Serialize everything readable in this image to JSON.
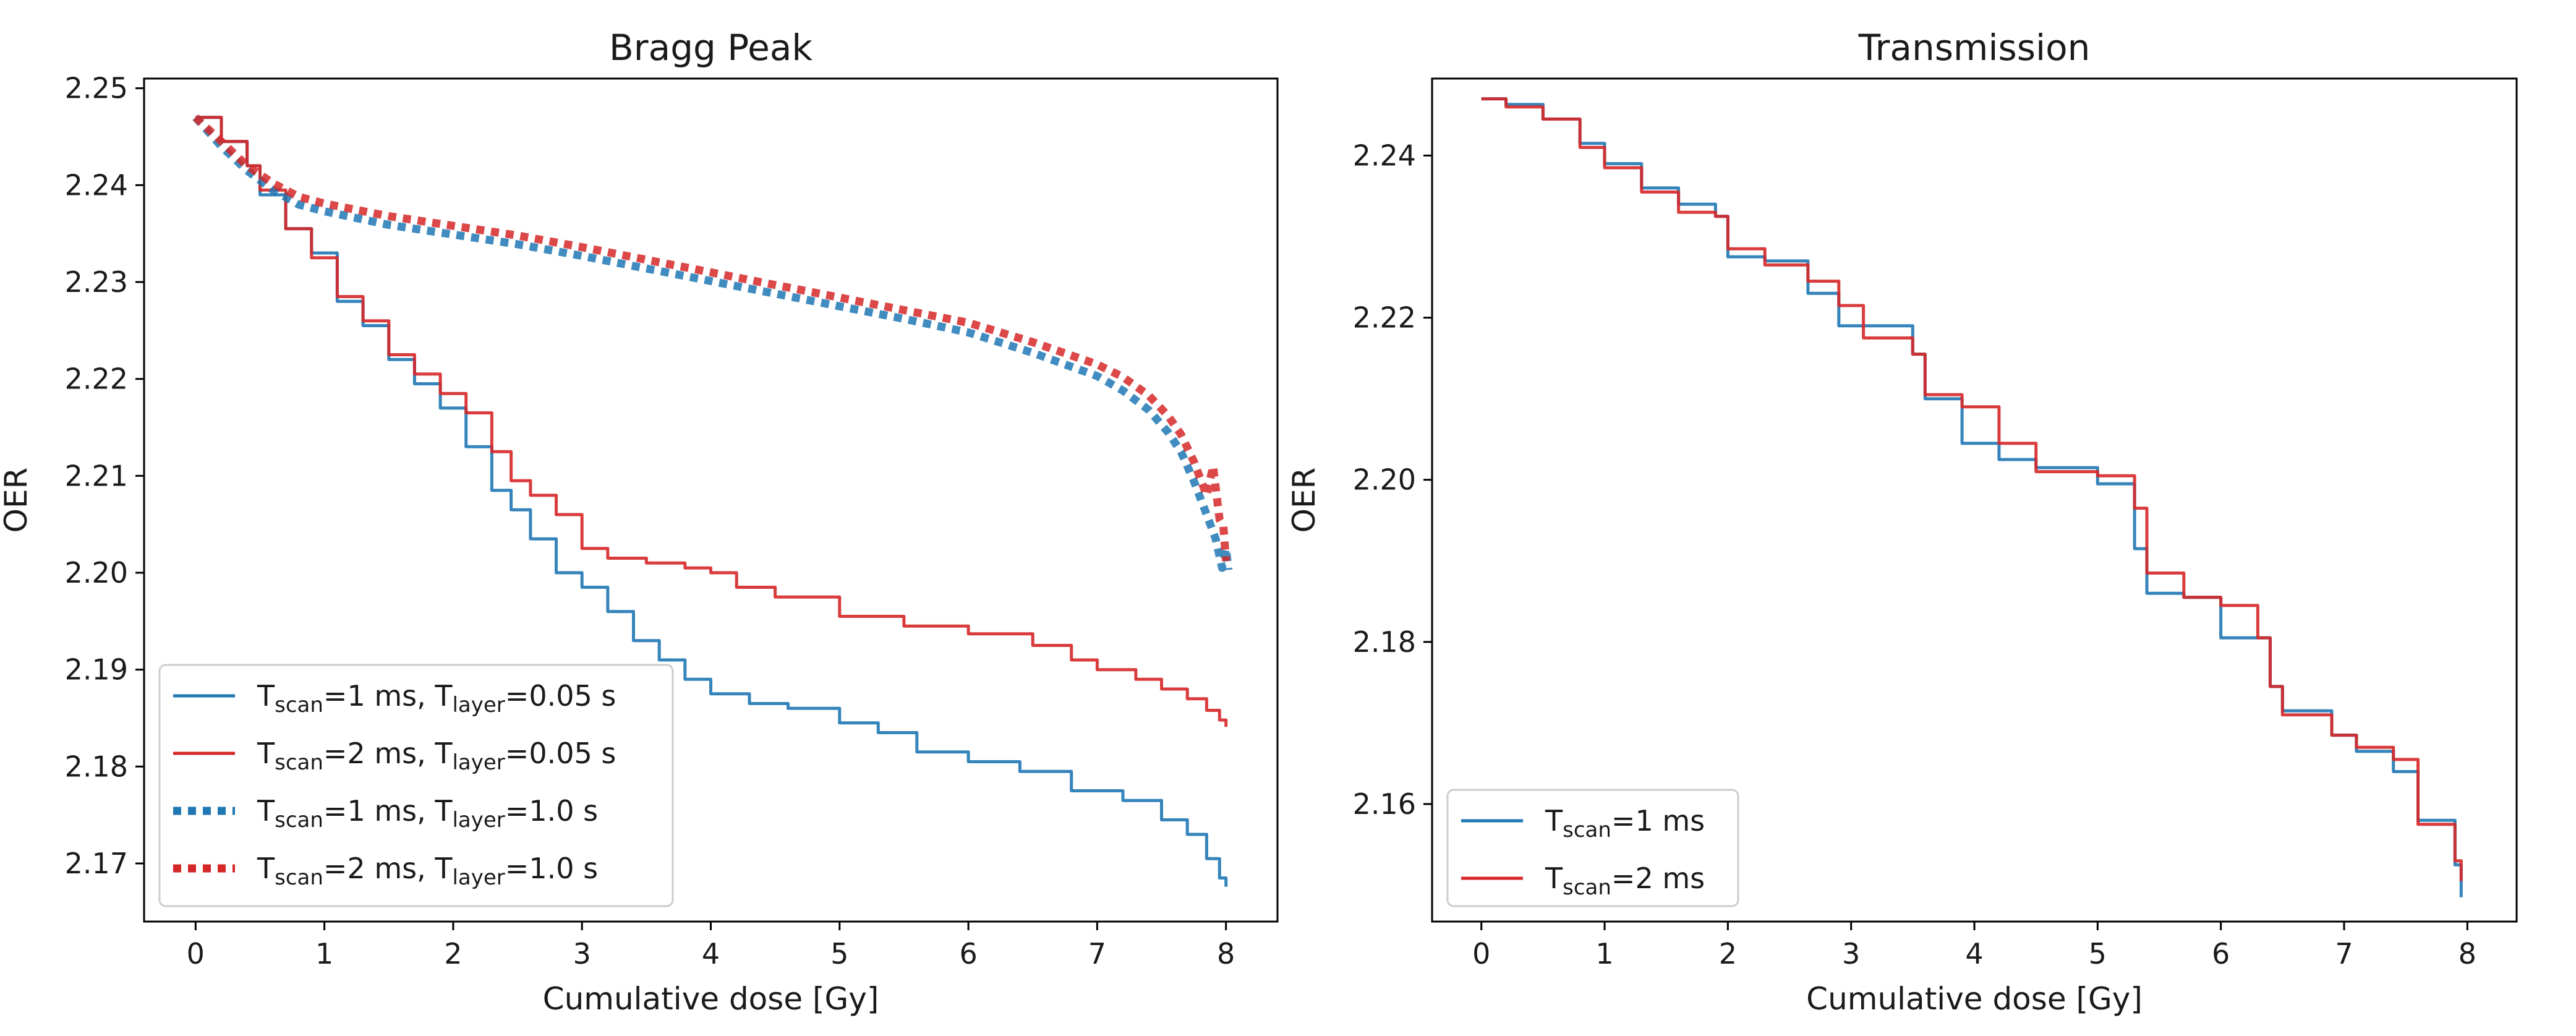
{
  "colors": {
    "blue": "#1f77b4",
    "red": "#d62728"
  },
  "chart_data": [
    {
      "type": "line",
      "title": "Bragg Peak",
      "xlabel": "Cumulative dose [Gy]",
      "ylabel": "OER",
      "xlim": [
        -0.4,
        8.4
      ],
      "ylim": [
        2.164,
        2.251
      ],
      "xticks": [
        0,
        1,
        2,
        3,
        4,
        5,
        6,
        7,
        8
      ],
      "yticks": [
        2.17,
        2.18,
        2.19,
        2.2,
        2.21,
        2.22,
        2.23,
        2.24,
        2.25
      ],
      "ytick_labels": [
        "2.17",
        "2.18",
        "2.19",
        "2.20",
        "2.21",
        "2.22",
        "2.23",
        "2.24",
        "2.25"
      ],
      "legend_position": "lower-left",
      "series": [
        {
          "name": "Tscan=1 ms, Tlayer=0.05 s",
          "label_parts": [
            "T",
            "scan",
            "=1 ms, T",
            "layer",
            "=0.05 s"
          ],
          "color": "#1f77b4",
          "style": "solid",
          "step": true,
          "x": [
            0.0,
            0.2,
            0.4,
            0.5,
            0.7,
            0.9,
            1.1,
            1.3,
            1.5,
            1.7,
            1.9,
            2.1,
            2.3,
            2.45,
            2.6,
            2.8,
            3.0,
            3.2,
            3.4,
            3.6,
            3.8,
            4.0,
            4.3,
            4.6,
            5.0,
            5.3,
            5.6,
            6.0,
            6.4,
            6.8,
            7.2,
            7.5,
            7.7,
            7.85,
            7.95,
            8.0
          ],
          "y": [
            2.247,
            2.2445,
            2.242,
            2.239,
            2.2355,
            2.233,
            2.228,
            2.2255,
            2.222,
            2.2195,
            2.217,
            2.213,
            2.2085,
            2.2065,
            2.2035,
            2.2,
            2.1985,
            2.196,
            2.193,
            2.191,
            2.189,
            2.1875,
            2.1865,
            2.186,
            2.1845,
            2.1835,
            2.1815,
            2.1805,
            2.1795,
            2.1775,
            2.1765,
            2.1745,
            2.173,
            2.1705,
            2.1685,
            2.1676
          ]
        },
        {
          "name": "Tscan=2 ms, Tlayer=0.05 s",
          "label_parts": [
            "T",
            "scan",
            "=2 ms, T",
            "layer",
            "=0.05 s"
          ],
          "color": "#d62728",
          "style": "solid",
          "step": true,
          "x": [
            0.0,
            0.2,
            0.4,
            0.5,
            0.7,
            0.9,
            1.1,
            1.3,
            1.5,
            1.7,
            1.9,
            2.1,
            2.3,
            2.45,
            2.6,
            2.8,
            3.0,
            3.2,
            3.5,
            3.8,
            4.0,
            4.2,
            4.5,
            5.0,
            5.5,
            6.0,
            6.5,
            6.8,
            7.0,
            7.3,
            7.5,
            7.7,
            7.85,
            7.95,
            8.0
          ],
          "y": [
            2.247,
            2.2445,
            2.242,
            2.2395,
            2.2355,
            2.2325,
            2.2285,
            2.226,
            2.2225,
            2.2205,
            2.2185,
            2.2165,
            2.2125,
            2.2095,
            2.208,
            2.206,
            2.2025,
            2.2015,
            2.201,
            2.2005,
            2.2,
            2.1985,
            2.1975,
            2.1955,
            2.1945,
            2.1937,
            2.1925,
            2.191,
            2.19,
            2.189,
            2.188,
            2.187,
            2.1858,
            2.1848,
            2.1841
          ]
        },
        {
          "name": "Tscan=1 ms, Tlayer=1.0 s",
          "label_parts": [
            "T",
            "scan",
            "=1 ms, T",
            "layer",
            "=1.0 s"
          ],
          "color": "#1f77b4",
          "style": "dotted",
          "step": false,
          "x": [
            0.0,
            0.2,
            0.4,
            0.6,
            0.8,
            1.0,
            1.5,
            2.0,
            2.5,
            3.0,
            3.5,
            4.0,
            4.5,
            5.0,
            5.5,
            6.0,
            6.5,
            7.0,
            7.2,
            7.4,
            7.55,
            7.65,
            7.75,
            7.85,
            7.92,
            7.97,
            8.0,
            8.02
          ],
          "y": [
            2.247,
            2.244,
            2.2415,
            2.2395,
            2.238,
            2.2373,
            2.2359,
            2.2349,
            2.2339,
            2.2327,
            2.2314,
            2.2301,
            2.2288,
            2.2275,
            2.2262,
            2.2248,
            2.2227,
            2.2203,
            2.2188,
            2.2168,
            2.2145,
            2.2125,
            2.2095,
            2.206,
            2.2035,
            2.2005,
            2.2025,
            2.2003
          ]
        },
        {
          "name": "Tscan=2 ms, Tlayer=1.0 s",
          "label_parts": [
            "T",
            "scan",
            "=2 ms, T",
            "layer",
            "=1.0 s"
          ],
          "color": "#d62728",
          "style": "dotted",
          "step": false,
          "x": [
            0.0,
            0.2,
            0.4,
            0.6,
            0.8,
            1.0,
            1.5,
            2.0,
            2.5,
            3.0,
            3.5,
            4.0,
            4.5,
            5.0,
            5.5,
            6.0,
            6.5,
            7.0,
            7.2,
            7.4,
            7.55,
            7.65,
            7.75,
            7.85,
            7.9,
            7.95,
            7.98,
            8.0
          ],
          "y": [
            2.247,
            2.2445,
            2.242,
            2.2402,
            2.2388,
            2.2381,
            2.2368,
            2.2358,
            2.2348,
            2.2336,
            2.2323,
            2.231,
            2.2297,
            2.2284,
            2.2271,
            2.2258,
            2.2238,
            2.2215,
            2.2202,
            2.2183,
            2.2162,
            2.2143,
            2.2115,
            2.208,
            2.211,
            2.2055,
            2.2048,
            2.2012
          ]
        }
      ]
    },
    {
      "type": "line",
      "title": "Transmission",
      "xlabel": "Cumulative dose [Gy]",
      "ylabel": "OER",
      "xlim": [
        -0.4,
        8.4
      ],
      "ylim": [
        2.1455,
        2.2495
      ],
      "xticks": [
        0,
        1,
        2,
        3,
        4,
        5,
        6,
        7,
        8
      ],
      "yticks": [
        2.16,
        2.18,
        2.2,
        2.22,
        2.24
      ],
      "ytick_labels": [
        "2.16",
        "2.18",
        "2.20",
        "2.22",
        "2.24"
      ],
      "legend_position": "lower-left",
      "series": [
        {
          "name": "Tscan=1 ms",
          "label_parts": [
            "T",
            "scan",
            "=1 ms",
            "",
            ""
          ],
          "color": "#1f77b4",
          "style": "solid",
          "step": true,
          "x": [
            0.0,
            0.2,
            0.5,
            0.8,
            1.0,
            1.3,
            1.6,
            1.9,
            2.0,
            2.3,
            2.65,
            2.9,
            3.1,
            3.5,
            3.6,
            3.9,
            4.2,
            4.5,
            5.0,
            5.3,
            5.4,
            5.7,
            6.0,
            6.3,
            6.4,
            6.5,
            6.9,
            7.1,
            7.4,
            7.6,
            7.9,
            7.95
          ],
          "y": [
            2.247,
            2.2463,
            2.2445,
            2.2415,
            2.239,
            2.236,
            2.234,
            2.2325,
            2.2275,
            2.227,
            2.223,
            2.219,
            2.219,
            2.2155,
            2.21,
            2.2045,
            2.2025,
            2.2015,
            2.1995,
            2.1915,
            2.186,
            2.1855,
            2.1805,
            2.1805,
            2.1745,
            2.1715,
            2.1685,
            2.1665,
            2.164,
            2.158,
            2.1525,
            2.1485
          ]
        },
        {
          "name": "Tscan=2 ms",
          "label_parts": [
            "T",
            "scan",
            "=2 ms",
            "",
            ""
          ],
          "color": "#d62728",
          "style": "solid",
          "step": true,
          "x": [
            0.0,
            0.2,
            0.5,
            0.8,
            1.0,
            1.3,
            1.6,
            1.9,
            2.0,
            2.3,
            2.65,
            2.9,
            3.1,
            3.5,
            3.6,
            3.9,
            4.2,
            4.5,
            5.0,
            5.3,
            5.4,
            5.7,
            6.0,
            6.3,
            6.4,
            6.5,
            6.9,
            7.1,
            7.4,
            7.6,
            7.9,
            7.95
          ],
          "y": [
            2.247,
            2.246,
            2.2445,
            2.241,
            2.2385,
            2.2355,
            2.233,
            2.2325,
            2.2285,
            2.2265,
            2.2245,
            2.2215,
            2.2175,
            2.2155,
            2.2105,
            2.209,
            2.2045,
            2.201,
            2.2005,
            2.1965,
            2.1885,
            2.1855,
            2.1845,
            2.1805,
            2.1745,
            2.171,
            2.1685,
            2.167,
            2.1655,
            2.1575,
            2.153,
            2.1505
          ]
        }
      ]
    }
  ]
}
